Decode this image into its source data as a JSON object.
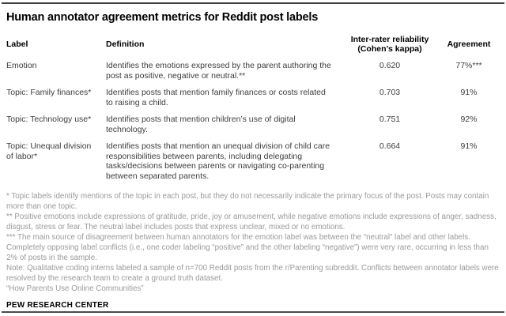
{
  "title": "Human annotator agreement metrics for Reddit post labels",
  "colors": {
    "rule_dark": "#424242",
    "body_text": "#3d3d3d",
    "footnote_gray": "#9a9a9a",
    "header_text": "#000000"
  },
  "header": {
    "label": "Label",
    "definition": "Definition",
    "reliability_line1": "Inter-rater reliability",
    "reliability_line2": "(Cohen’s kappa)",
    "agreement": "Agreement"
  },
  "chart_data": {
    "type": "table",
    "title": "Human annotator agreement metrics for Reddit post labels",
    "columns": [
      "Label",
      "Definition",
      "Inter-rater reliability (Cohen’s kappa)",
      "Agreement"
    ],
    "rows": [
      {
        "label": "Emotion",
        "definition": "Identifies the emotions expressed by the parent authoring the post as positive, negative or neutral.**",
        "kappa": "0.620",
        "agreement": "77%***"
      },
      {
        "label": "Topic: Family finances*",
        "definition": "Identifies posts that mention family finances or costs related to raising a child.",
        "kappa": "0.703",
        "agreement": "91%"
      },
      {
        "label": "Topic: Technology use*",
        "definition": "Identifies posts that mention children’s use of digital technology.",
        "kappa": "0.751",
        "agreement": "92%"
      },
      {
        "label": "Topic: Unequal division of labor*",
        "definition": "Identifies posts that mention an unequal division of child care responsibilities between parents, including delegating tasks/decisions between parents or navigating co-parenting between separated parents.",
        "kappa": "0.664",
        "agreement": "91%"
      }
    ]
  },
  "footnotes": [
    "* Topic labels identify mentions of the topic in each post, but they do not necessarily indicate the primary focus of the post. Posts may contain more than one topic.",
    "** Positive emotions include expressions of gratitude, pride, joy or amusement, while negative emotions include expressions of anger, sadness, disgust, stress or fear. The neutral label includes posts that express unclear, mixed or no emotions.",
    "*** The main source of disagreement between human annotators for the emotion label was between the “neutral” label and other labels. Completely opposing label conflicts (i.e., one coder labeling “positive” and the other labeling “negative”) were very rare, occurring in less than 2% of posts in the sample.",
    "Note: Qualitative coding interns labeled a sample of n=700 Reddit posts from the r/Parenting subreddit. Conflicts between annotator labels were resolved by the research team to create a ground truth dataset.",
    "“How Parents Use Online Communities”"
  ],
  "source_org": "PEW RESEARCH CENTER"
}
